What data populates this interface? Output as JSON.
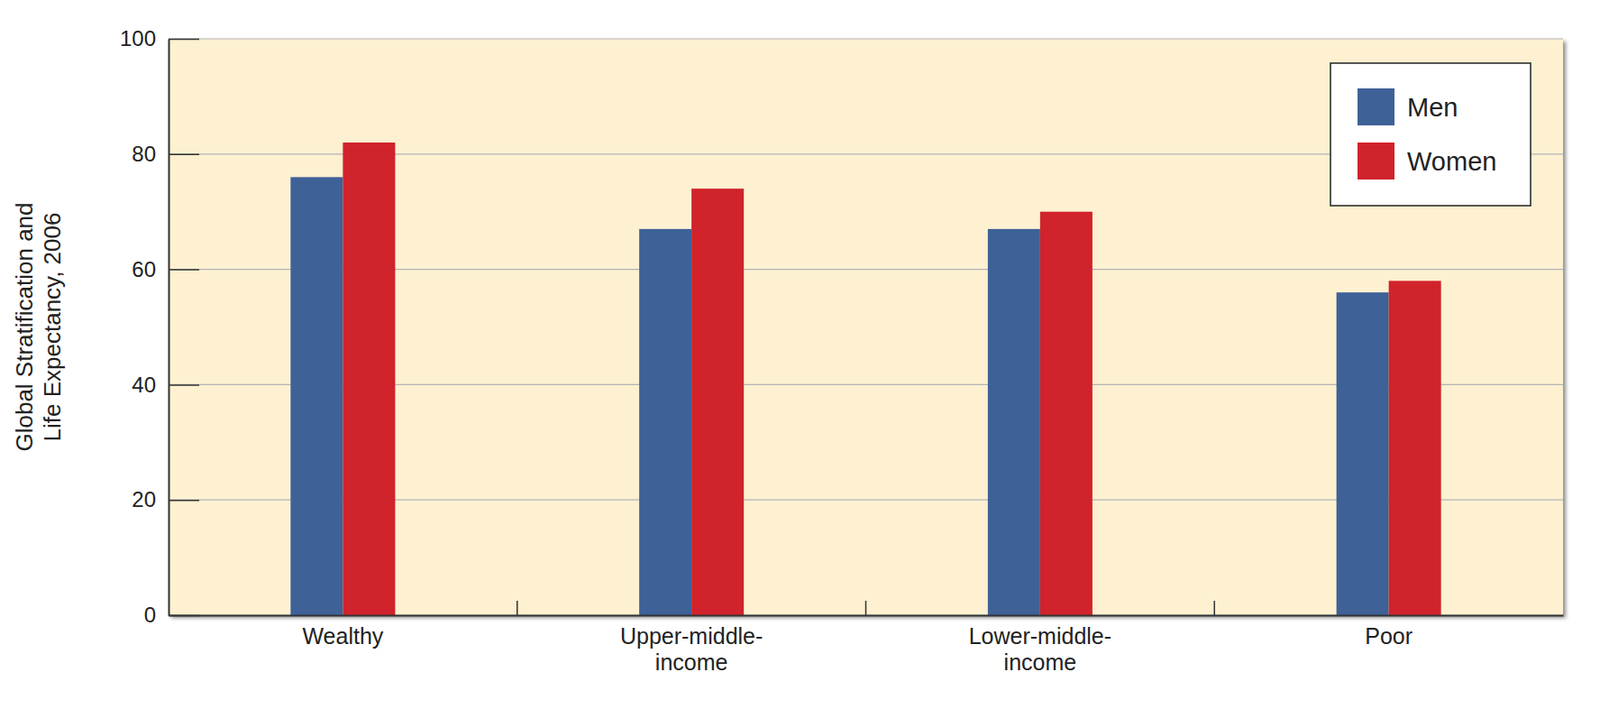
{
  "chart_data": {
    "type": "bar",
    "y_label": "Global Stratification and Life Expectancy, 2006",
    "categories": [
      "Wealthy",
      "Upper-middle-income",
      "Lower-middle-income",
      "Poor"
    ],
    "series": [
      {
        "name": "Men",
        "color": "#3e6198",
        "values": [
          76,
          67,
          67,
          56
        ]
      },
      {
        "name": "Women",
        "color": "#d0232b",
        "values": [
          82,
          74,
          70,
          58
        ]
      }
    ],
    "ylim": [
      0,
      100
    ],
    "yticks": [
      0,
      20,
      40,
      60,
      80,
      100
    ],
    "grid": true,
    "legend": "top-right"
  }
}
